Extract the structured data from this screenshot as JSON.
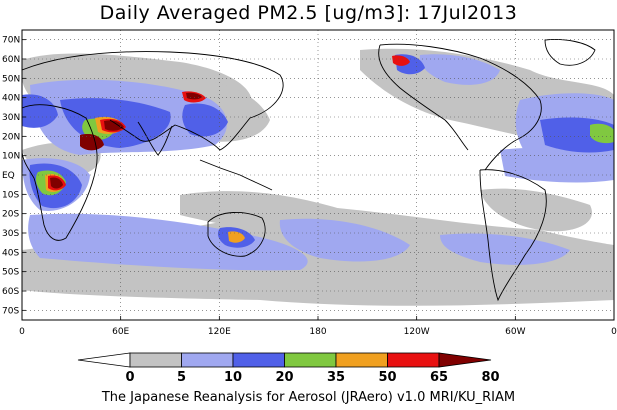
{
  "title": "Daily Averaged PM2.5 [ug/m3]: 17Jul2013",
  "footer": "The Japanese Reanalysis for Aerosol (JRAero) v1.0 MRI/KU_RIAM",
  "map": {
    "lon_range": [
      0,
      360
    ],
    "lat_range": [
      -75,
      75
    ],
    "lat_labels": [
      "70N",
      "60N",
      "50N",
      "40N",
      "30N",
      "20N",
      "10N",
      "EQ",
      "10S",
      "20S",
      "30S",
      "40S",
      "50S",
      "60S",
      "70S"
    ],
    "lat_values": [
      70,
      60,
      50,
      40,
      30,
      20,
      10,
      0,
      -10,
      -20,
      -30,
      -40,
      -50,
      -60,
      -70
    ],
    "lon_labels": [
      "0",
      "60E",
      "120E",
      "180",
      "120W",
      "60W",
      "0"
    ],
    "lon_values": [
      0,
      60,
      120,
      180,
      240,
      300,
      360
    ]
  },
  "colorbar": {
    "levels": [
      "0",
      "5",
      "10",
      "20",
      "35",
      "50",
      "65",
      "80"
    ],
    "colors": [
      "#ffffff",
      "#c3c3c3",
      "#a0a8f0",
      "#5060e8",
      "#80c840",
      "#f0a020",
      "#e81010",
      "#800000"
    ]
  }
}
